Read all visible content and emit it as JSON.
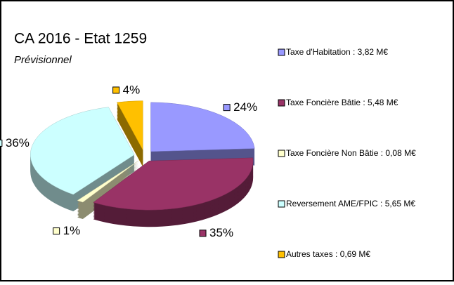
{
  "chart_data": {
    "type": "pie",
    "title": "CA 2016 - Etat 1259",
    "subtitle": "Prévisionnel",
    "categories": [
      "Taxe d'Habitation : 3,82 M€",
      "Taxe Foncière Bâtie : 5,48 M€",
      "Taxe Foncière Non Bâtie : 0,08 M€",
      "Reversement AME/FPIC : 5,65 M€",
      "Autres taxes : 0,69 M€"
    ],
    "values": [
      24,
      35,
      1,
      36,
      4
    ],
    "value_labels": [
      "24%",
      "35%",
      "1%",
      "36%",
      "4%"
    ],
    "colors": [
      "#9999ff",
      "#993366",
      "#ffffcc",
      "#ccffff",
      "#ffc000"
    ],
    "legend": "right"
  }
}
